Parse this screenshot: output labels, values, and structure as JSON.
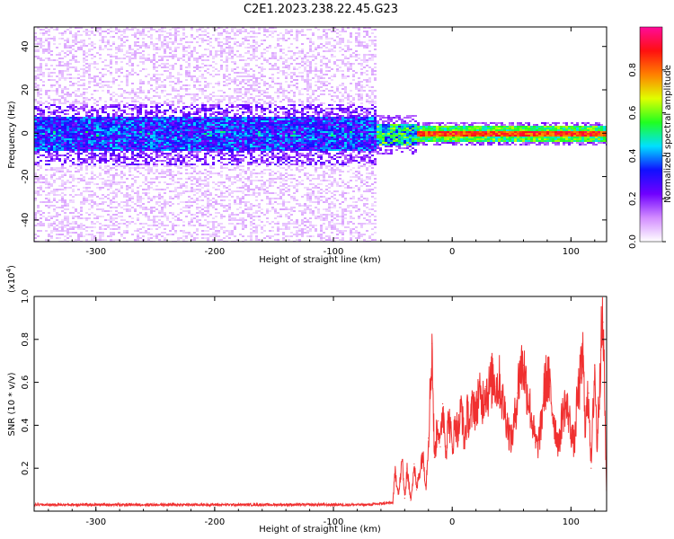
{
  "title": "C2E1.2023.238.22.45.G23",
  "chart_data": [
    {
      "type": "heatmap",
      "xlabel": "Height of straight line (km)",
      "ylabel": "Frequency (Hz)",
      "xlim": [
        -352,
        130
      ],
      "ylim": [
        -50,
        49
      ],
      "xticks": [
        -300,
        -200,
        -100,
        0,
        100
      ],
      "yticks": [
        -40,
        -20,
        0,
        20,
        40
      ],
      "colorbar": {
        "label": "Normalized spectral amplitude",
        "ticks": [
          "0.0",
          "0.2",
          "0.4",
          "0.6",
          "0.8"
        ],
        "range": [
          0,
          1
        ],
        "colors": [
          "#ffffff",
          "#d28cff",
          "#7000ff",
          "#1010ff",
          "#00e0ff",
          "#20ff20",
          "#e0ff00",
          "#ff8000",
          "#ff1010",
          "#ff0a9a"
        ]
      },
      "regions": [
        {
          "x_from": -352,
          "x_to": -65,
          "description": "broadband",
          "core_halfwidth_hz": 8,
          "spread_halfwidth_hz": 49,
          "core_amplitude": 0.2,
          "spread_amplitude": 0.05
        },
        {
          "x_from": -65,
          "x_to": -30,
          "description": "transition",
          "core_halfwidth_hz": 5,
          "core_amplitude": 0.5
        },
        {
          "x_from": -30,
          "x_to": 130,
          "description": "narrow",
          "core_halfwidth_hz": 1.5,
          "core_amplitude": 0.9
        }
      ]
    },
    {
      "type": "line",
      "xlabel": "Height of straight line (km)",
      "ylabel": "SNR (10 * v/v)",
      "yscale_label": "(x10",
      "yscale_exp": "4",
      "yscale_close": ")",
      "xlim": [
        -352,
        130
      ],
      "ylim": [
        0,
        1.0
      ],
      "xticks": [
        -300,
        -200,
        -100,
        0,
        100
      ],
      "yticks": [
        "0.2",
        "0.4",
        "0.6",
        "0.8",
        "1.0"
      ],
      "series": [
        {
          "color": "#f03030",
          "x": [
            -352,
            -300,
            -250,
            -200,
            -150,
            -100,
            -70,
            -50,
            -48,
            -45,
            -42,
            -40,
            -38,
            -35,
            -32,
            -30,
            -25,
            -22,
            -20,
            -17,
            -15,
            -12,
            -10,
            -8,
            -5,
            -3,
            0,
            3,
            5,
            8,
            10,
            13,
            15,
            18,
            20,
            22,
            25,
            28,
            30,
            33,
            35,
            37,
            40,
            42,
            45,
            48,
            50,
            52,
            55,
            57,
            60,
            62,
            65,
            68,
            70,
            72,
            75,
            77,
            80,
            82,
            85,
            88,
            90,
            92,
            95,
            98,
            100,
            103,
            105,
            108,
            110,
            112,
            115,
            117,
            120,
            122,
            125,
            127,
            130
          ],
          "y": [
            0.03,
            0.03,
            0.03,
            0.03,
            0.03,
            0.03,
            0.03,
            0.04,
            0.18,
            0.08,
            0.24,
            0.06,
            0.2,
            0.05,
            0.22,
            0.1,
            0.27,
            0.12,
            0.34,
            0.78,
            0.25,
            0.42,
            0.3,
            0.5,
            0.28,
            0.45,
            0.3,
            0.42,
            0.36,
            0.5,
            0.32,
            0.46,
            0.4,
            0.52,
            0.45,
            0.55,
            0.5,
            0.58,
            0.55,
            0.6,
            0.63,
            0.58,
            0.6,
            0.52,
            0.45,
            0.36,
            0.33,
            0.4,
            0.55,
            0.66,
            0.68,
            0.6,
            0.5,
            0.4,
            0.32,
            0.3,
            0.4,
            0.55,
            0.63,
            0.58,
            0.45,
            0.35,
            0.3,
            0.42,
            0.5,
            0.45,
            0.38,
            0.3,
            0.5,
            0.62,
            0.72,
            0.4,
            0.55,
            0.2,
            0.68,
            0.3,
            0.75,
            0.88,
            0.1
          ]
        }
      ]
    }
  ]
}
